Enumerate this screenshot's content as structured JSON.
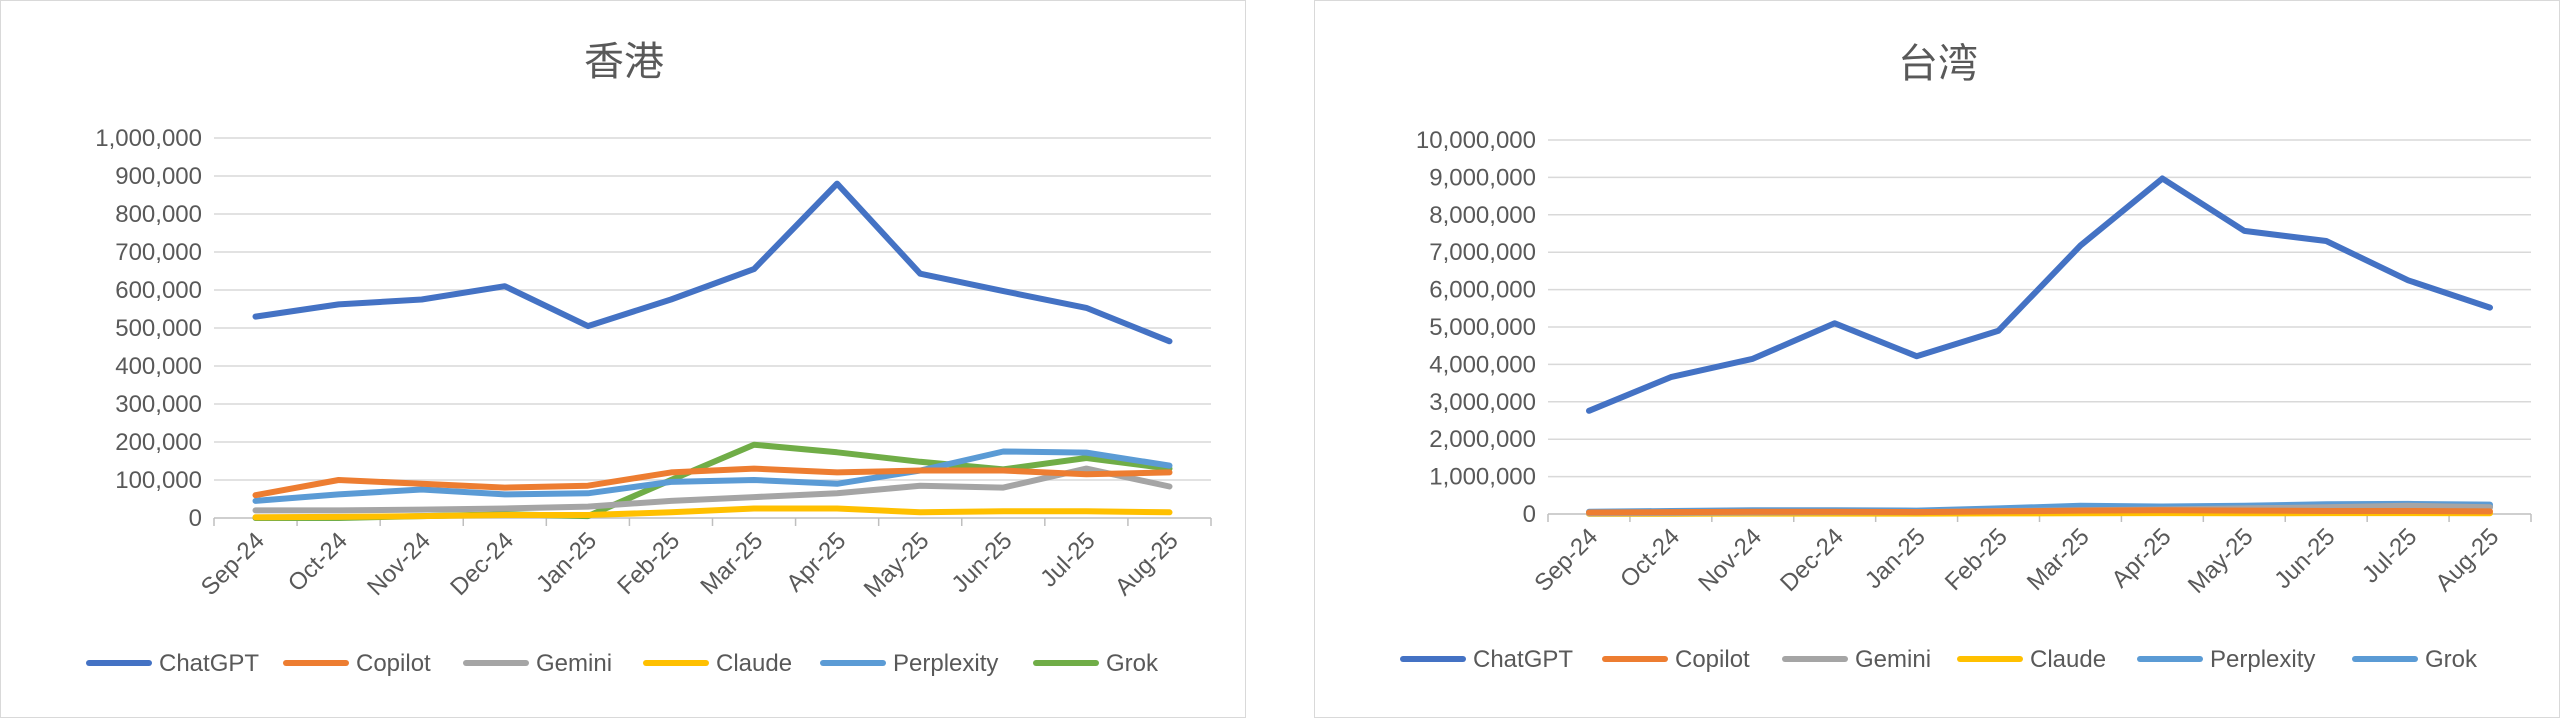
{
  "chart_data": [
    {
      "type": "line",
      "title": "香港",
      "xlabel": "",
      "ylabel": "",
      "categories": [
        "Sep-24",
        "Oct-24",
        "Nov-24",
        "Dec-24",
        "Jan-25",
        "Feb-25",
        "Mar-25",
        "Apr-25",
        "May-25",
        "Jun-25",
        "Jul-25",
        "Aug-25"
      ],
      "ylim": [
        0,
        1000000
      ],
      "ytick_step": 100000,
      "ytick_labels": [
        "0",
        "100,000",
        "200,000",
        "300,000",
        "400,000",
        "500,000",
        "600,000",
        "700,000",
        "800,000",
        "900,000",
        "1,000,000"
      ],
      "grid": true,
      "legend_position": "bottom",
      "series": [
        {
          "name": "ChatGPT",
          "color": "#4472C4",
          "values": [
            530000,
            562000,
            575000,
            610000,
            505000,
            575000,
            655000,
            880000,
            643000,
            597000,
            553000,
            465000
          ]
        },
        {
          "name": "Copilot",
          "color": "#ED7D31",
          "values": [
            60000,
            100000,
            90000,
            80000,
            85000,
            120000,
            130000,
            120000,
            125000,
            125000,
            115000,
            120000
          ]
        },
        {
          "name": "Gemini",
          "color": "#A5A5A5",
          "values": [
            20000,
            20000,
            22000,
            25000,
            30000,
            45000,
            55000,
            65000,
            85000,
            80000,
            130000,
            83000
          ]
        },
        {
          "name": "Claude",
          "color": "#FFC000",
          "values": [
            2000,
            3000,
            5000,
            8000,
            8000,
            15000,
            25000,
            25000,
            15000,
            18000,
            18000,
            15000
          ]
        },
        {
          "name": "Perplexity",
          "color": "#5B9BD5",
          "values": [
            45000,
            62000,
            75000,
            62000,
            65000,
            95000,
            100000,
            90000,
            125000,
            175000,
            172000,
            138000
          ]
        },
        {
          "name": "Grok",
          "color": "#70AD47",
          "values": [
            0,
            0,
            5000,
            10000,
            5000,
            100000,
            193000,
            173000,
            148000,
            128000,
            158000,
            130000
          ]
        }
      ]
    },
    {
      "type": "line",
      "title": "台湾",
      "xlabel": "",
      "ylabel": "",
      "categories": [
        "Sep-24",
        "Oct-24",
        "Nov-24",
        "Dec-24",
        "Jan-25",
        "Feb-25",
        "Mar-25",
        "Apr-25",
        "May-25",
        "Jun-25",
        "Jul-25",
        "Aug-25"
      ],
      "ylim": [
        0,
        10000000
      ],
      "ytick_step": 1000000,
      "ytick_labels": [
        "0",
        "1,000,000",
        "2,000,000",
        "3,000,000",
        "4,000,000",
        "5,000,000",
        "6,000,000",
        "7,000,000",
        "8,000,000",
        "9,000,000",
        "10,000,000"
      ],
      "grid": true,
      "legend_position": "bottom",
      "series": [
        {
          "name": "ChatGPT",
          "color": "#4472C4",
          "values": [
            2760000,
            3660000,
            4150000,
            5100000,
            4220000,
            4900000,
            7180000,
            8970000,
            7570000,
            7300000,
            6250000,
            5520000
          ]
        },
        {
          "name": "Copilot",
          "color": "#ED7D31",
          "values": [
            40000,
            50000,
            60000,
            60000,
            50000,
            70000,
            90000,
            100000,
            90000,
            80000,
            80000,
            70000
          ]
        },
        {
          "name": "Gemini",
          "color": "#A5A5A5",
          "values": [
            20000,
            30000,
            40000,
            50000,
            50000,
            80000,
            100000,
            120000,
            150000,
            180000,
            220000,
            180000
          ]
        },
        {
          "name": "Claude",
          "color": "#FFC000",
          "values": [
            5000,
            8000,
            10000,
            10000,
            10000,
            15000,
            20000,
            25000,
            20000,
            25000,
            25000,
            20000
          ]
        },
        {
          "name": "Perplexity",
          "color": "#5B9BD5",
          "values": [
            60000,
            80000,
            100000,
            100000,
            90000,
            150000,
            220000,
            200000,
            220000,
            260000,
            270000,
            250000
          ]
        },
        {
          "name": "Grok",
          "color": "#5B9BD5",
          "values": [
            10000,
            10000,
            20000,
            30000,
            30000,
            80000,
            150000,
            150000,
            160000,
            180000,
            220000,
            200000
          ]
        }
      ]
    }
  ]
}
